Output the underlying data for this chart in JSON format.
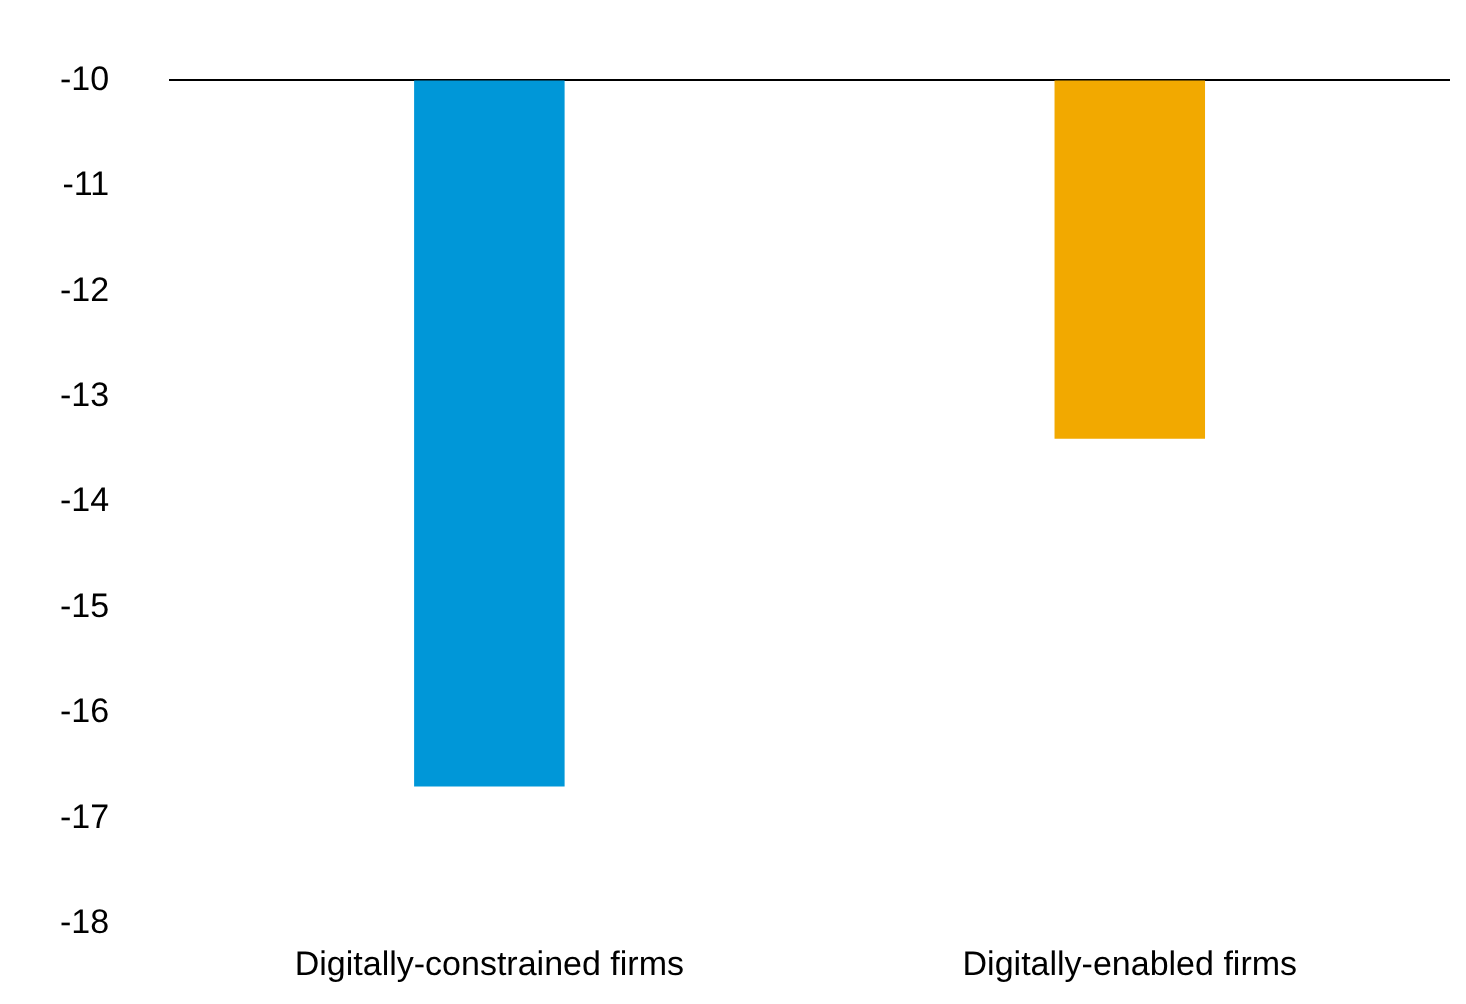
{
  "chart_data": {
    "type": "bar",
    "categories": [
      "Digitally-constrained firms",
      "Digitally-enabled firms"
    ],
    "values": [
      -16.7,
      -13.4
    ],
    "colors": [
      "#0097d8",
      "#f2a900"
    ],
    "ylim": [
      -18,
      -10
    ],
    "yticks": [
      -18,
      -17,
      -16,
      -15,
      -14,
      -13,
      -12,
      -11,
      -10
    ],
    "grid": false,
    "legend": false
  }
}
